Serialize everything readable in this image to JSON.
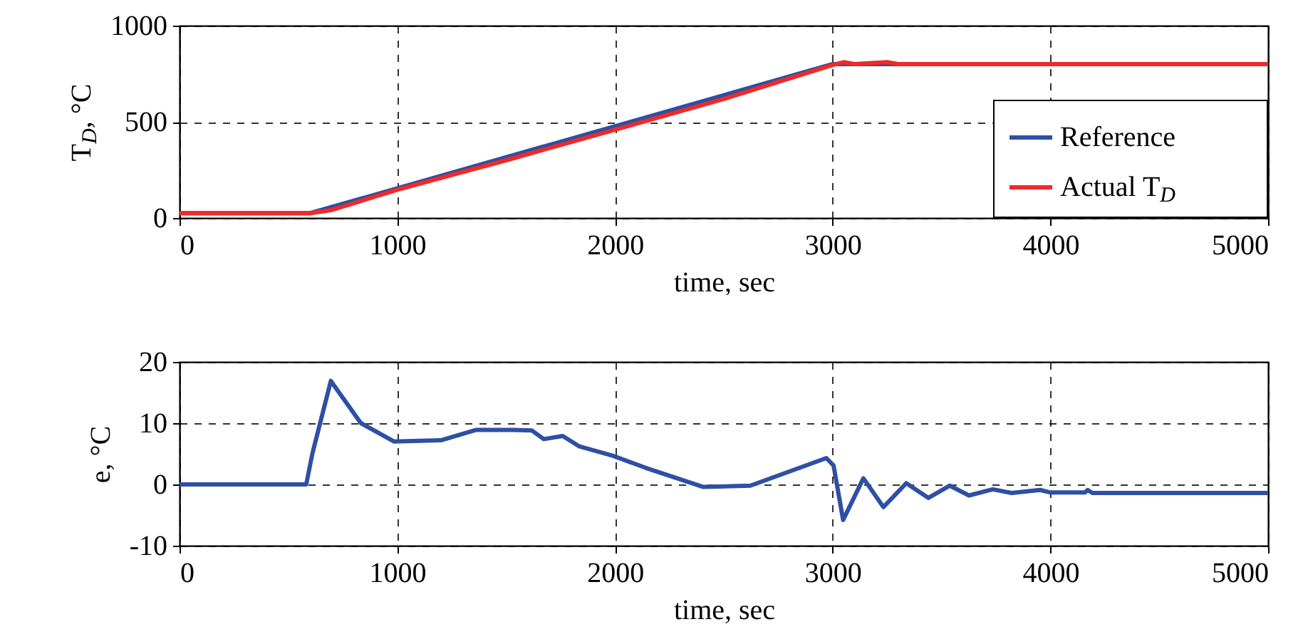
{
  "chart_data": [
    {
      "type": "line",
      "xlabel": "time, sec",
      "ylabel": "T$_{D}$, °C",
      "xlim": [
        0,
        5000
      ],
      "xticks": [
        0,
        1000,
        2000,
        3000,
        4000,
        5000
      ],
      "ylim": [
        0,
        1000
      ],
      "yticks": [
        0,
        500,
        1000
      ],
      "grid": true,
      "legend": "bottom right",
      "line_style": "solid",
      "marker": "none",
      "series": [
        {
          "name": "Reference",
          "color": "#2e4fa3",
          "x": [
            0,
            600,
            3000,
            5000
          ],
          "values": [
            25,
            25,
            800,
            800
          ]
        },
        {
          "name": "Actual T$_{D}$",
          "color": "#ee2a2a",
          "x": [
            0,
            600,
            700,
            1000,
            1500,
            2000,
            2500,
            3000,
            3050,
            3100,
            3250,
            3300,
            5000
          ],
          "values": [
            25,
            25,
            42,
            147,
            300,
            459,
            619,
            796,
            810,
            800,
            810,
            800,
            800
          ]
        }
      ]
    },
    {
      "type": "line",
      "xlabel": "time, sec",
      "ylabel": "e, °C",
      "xlim": [
        0,
        5000
      ],
      "xticks": [
        0,
        1000,
        2000,
        3000,
        4000,
        5000
      ],
      "ylim": [
        -10,
        20
      ],
      "yticks": [
        -10,
        0,
        10,
        20
      ],
      "grid": true,
      "line_style": "solid",
      "marker": "none",
      "series": [
        {
          "color": "#2e4fa3",
          "x": [
            0,
            582,
            610,
            695,
            833,
            986,
            1200,
            1363,
            1531,
            1619,
            1673,
            1760,
            1837,
            1989,
            2142,
            2404,
            2622,
            2971,
            3004,
            3048,
            3141,
            3233,
            3338,
            3440,
            3538,
            3626,
            3735,
            3822,
            3953,
            3997,
            4160,
            4171,
            4193,
            5000
          ],
          "values": [
            0,
            0,
            5,
            16.9,
            10,
            7,
            7.2,
            8.9,
            8.9,
            8.8,
            7.4,
            7.9,
            6.2,
            4.7,
            2.7,
            -0.4,
            -0.2,
            4.3,
            3.1,
            -5.8,
            1,
            -3.7,
            0.2,
            -2.2,
            -0.2,
            -1.8,
            -0.8,
            -1.4,
            -0.9,
            -1.3,
            -1.3,
            -0.9,
            -1.4,
            -1.4
          ]
        }
      ]
    }
  ]
}
